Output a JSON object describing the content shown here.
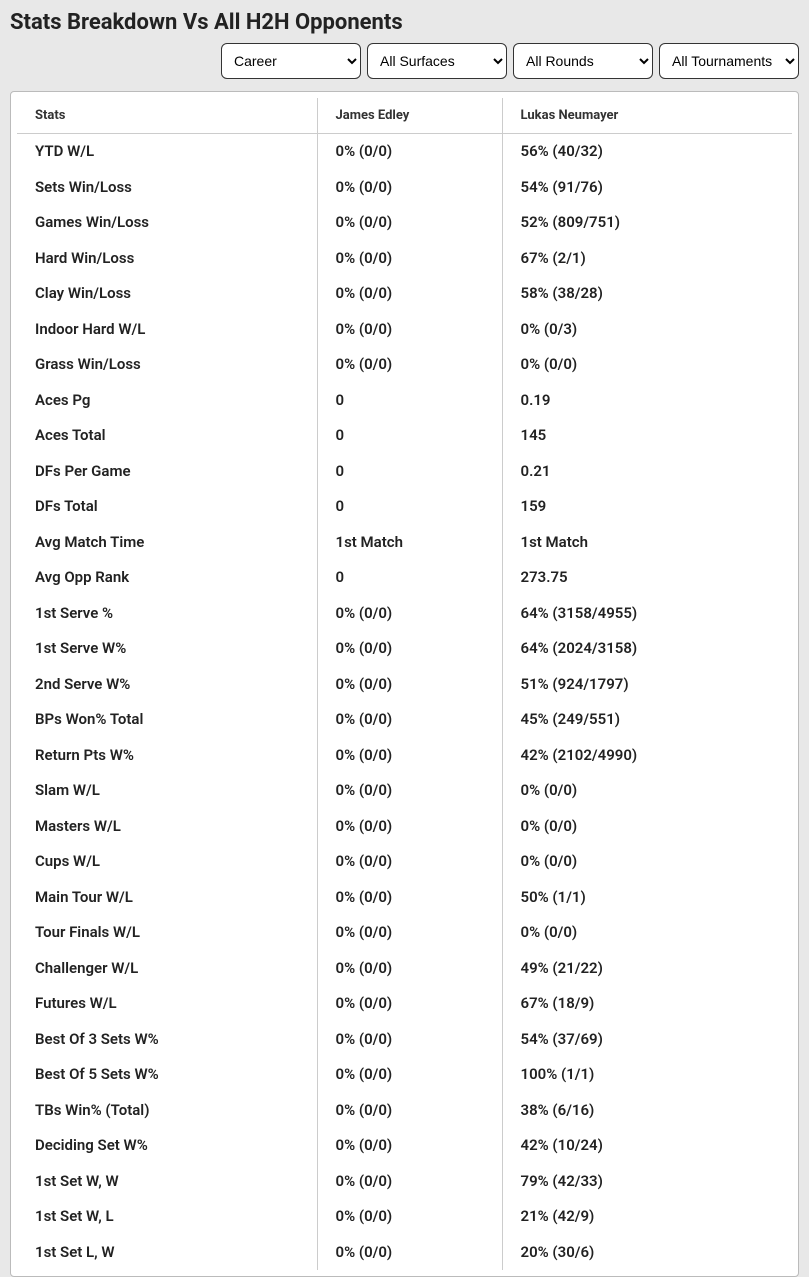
{
  "title": "Stats Breakdown Vs All H2H Opponents",
  "filters": {
    "period": "Career",
    "surface": "All Surfaces",
    "round": "All Rounds",
    "tournament": "All Tournaments"
  },
  "columns": {
    "stat": "Stats",
    "p1": "James Edley",
    "p2": "Lukas Neumayer"
  },
  "rows": [
    {
      "stat": "YTD W/L",
      "p1": "0% (0/0)",
      "p2": "56% (40/32)"
    },
    {
      "stat": "Sets Win/Loss",
      "p1": "0% (0/0)",
      "p2": "54% (91/76)"
    },
    {
      "stat": "Games Win/Loss",
      "p1": "0% (0/0)",
      "p2": "52% (809/751)"
    },
    {
      "stat": "Hard Win/Loss",
      "p1": "0% (0/0)",
      "p2": "67% (2/1)"
    },
    {
      "stat": "Clay Win/Loss",
      "p1": "0% (0/0)",
      "p2": "58% (38/28)"
    },
    {
      "stat": "Indoor Hard W/L",
      "p1": "0% (0/0)",
      "p2": "0% (0/3)"
    },
    {
      "stat": "Grass Win/Loss",
      "p1": "0% (0/0)",
      "p2": "0% (0/0)"
    },
    {
      "stat": "Aces Pg",
      "p1": "0",
      "p2": "0.19"
    },
    {
      "stat": "Aces Total",
      "p1": "0",
      "p2": "145"
    },
    {
      "stat": "DFs Per Game",
      "p1": "0",
      "p2": "0.21"
    },
    {
      "stat": "DFs Total",
      "p1": "0",
      "p2": "159"
    },
    {
      "stat": "Avg Match Time",
      "p1": "1st Match",
      "p2": "1st Match"
    },
    {
      "stat": "Avg Opp Rank",
      "p1": "0",
      "p2": "273.75"
    },
    {
      "stat": "1st Serve %",
      "p1": "0% (0/0)",
      "p2": "64% (3158/4955)"
    },
    {
      "stat": "1st Serve W%",
      "p1": "0% (0/0)",
      "p2": "64% (2024/3158)"
    },
    {
      "stat": "2nd Serve W%",
      "p1": "0% (0/0)",
      "p2": "51% (924/1797)"
    },
    {
      "stat": "BPs Won% Total",
      "p1": "0% (0/0)",
      "p2": "45% (249/551)"
    },
    {
      "stat": "Return Pts W%",
      "p1": "0% (0/0)",
      "p2": "42% (2102/4990)"
    },
    {
      "stat": "Slam W/L",
      "p1": "0% (0/0)",
      "p2": "0% (0/0)"
    },
    {
      "stat": "Masters W/L",
      "p1": "0% (0/0)",
      "p2": "0% (0/0)"
    },
    {
      "stat": "Cups W/L",
      "p1": "0% (0/0)",
      "p2": "0% (0/0)"
    },
    {
      "stat": "Main Tour W/L",
      "p1": "0% (0/0)",
      "p2": "50% (1/1)"
    },
    {
      "stat": "Tour Finals W/L",
      "p1": "0% (0/0)",
      "p2": "0% (0/0)"
    },
    {
      "stat": "Challenger W/L",
      "p1": "0% (0/0)",
      "p2": "49% (21/22)"
    },
    {
      "stat": "Futures W/L",
      "p1": "0% (0/0)",
      "p2": "67% (18/9)"
    },
    {
      "stat": "Best Of 3 Sets W%",
      "p1": "0% (0/0)",
      "p2": "54% (37/69)"
    },
    {
      "stat": "Best Of 5 Sets W%",
      "p1": "0% (0/0)",
      "p2": "100% (1/1)"
    },
    {
      "stat": "TBs Win% (Total)",
      "p1": "0% (0/0)",
      "p2": "38% (6/16)"
    },
    {
      "stat": "Deciding Set W%",
      "p1": "0% (0/0)",
      "p2": "42% (10/24)"
    },
    {
      "stat": "1st Set W, W",
      "p1": "0% (0/0)",
      "p2": "79% (42/33)"
    },
    {
      "stat": "1st Set W, L",
      "p1": "0% (0/0)",
      "p2": "21% (42/9)"
    },
    {
      "stat": "1st Set L, W",
      "p1": "0% (0/0)",
      "p2": "20% (30/6)"
    }
  ],
  "styling": {
    "page_bg": "#e8e8e8",
    "table_bg": "#ffffff",
    "border_color": "#bbbbbb",
    "cell_border_color": "#cccccc",
    "title_color": "#222222",
    "text_color": "#222222",
    "title_fontsize": 22,
    "header_fontsize": 13,
    "cell_fontsize": 15
  }
}
